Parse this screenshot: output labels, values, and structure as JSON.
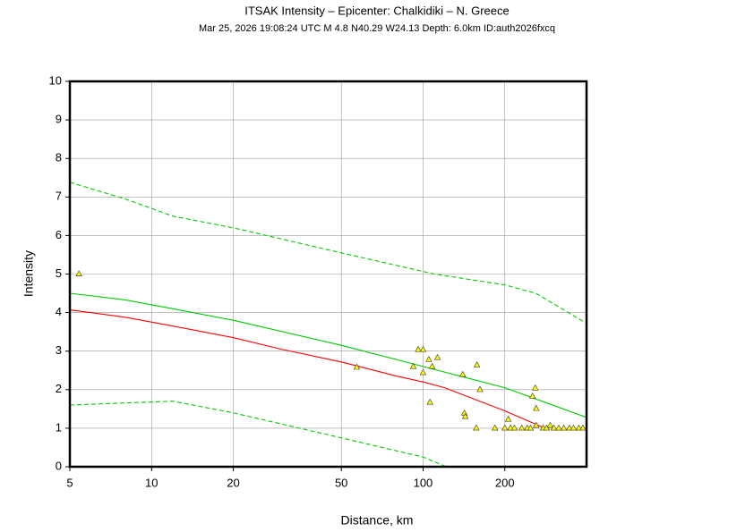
{
  "chart_data": {
    "type": "line",
    "title": "ITSAK Intensity –  Epicenter: Chalkidiki – N. Greece",
    "subtitle": "Mar 25, 2026 19:08:24 UTC   M 4.8   N40.29 W24.13   Depth: 6.0km   ID:auth2026fxcq",
    "x_label": "Distance, km",
    "y_label": "Intensity",
    "x_scale": "log",
    "xlim": [
      5,
      400
    ],
    "ylim": [
      0,
      10
    ],
    "xticks": [
      5,
      10,
      20,
      50,
      100,
      200
    ],
    "yticks": [
      0,
      1,
      2,
      3,
      4,
      5,
      6,
      7,
      8,
      9,
      10
    ],
    "grid": true,
    "series": [
      {
        "type": "line",
        "dashed": true,
        "color": "#00cc00",
        "x": [
          5,
          8,
          12,
          20,
          50,
          110,
          200,
          260,
          400
        ],
        "values": [
          7.38,
          6.95,
          6.5,
          6.2,
          5.55,
          5.0,
          4.72,
          4.5,
          3.72
        ]
      },
      {
        "type": "line",
        "dashed": false,
        "color": "#00cc00",
        "x": [
          5,
          8,
          12,
          20,
          50,
          100,
          200,
          400
        ],
        "values": [
          4.5,
          4.33,
          4.1,
          3.8,
          3.15,
          2.6,
          2.05,
          1.28
        ]
      },
      {
        "type": "line",
        "dashed": false,
        "color": "#ff0000",
        "x": [
          5,
          8,
          12,
          20,
          30,
          50,
          80,
          100,
          120,
          200,
          281
        ],
        "values": [
          4.07,
          3.88,
          3.65,
          3.35,
          3.05,
          2.72,
          2.35,
          2.2,
          2.05,
          1.45,
          1.0
        ]
      },
      {
        "type": "line",
        "dashed": true,
        "color": "#00cc00",
        "x": [
          5,
          12,
          20,
          50,
          100,
          122
        ],
        "values": [
          1.6,
          1.7,
          1.4,
          0.75,
          0.25,
          0
        ]
      },
      {
        "type": "scatter",
        "color": "#ffff00",
        "x": [
          5.4,
          57,
          92,
          96,
          100,
          100,
          105,
          108,
          106,
          113,
          140,
          142,
          143,
          158,
          162,
          157,
          184,
          200,
          206,
          210,
          217,
          231,
          242,
          249,
          253,
          259,
          261,
          261,
          277,
          285,
          294,
          303,
          316,
          330,
          346,
          358,
          375,
          388
        ],
        "values": [
          5.0,
          2.58,
          2.6,
          3.04,
          3.04,
          2.44,
          2.78,
          2.6,
          1.67,
          2.83,
          2.39,
          1.39,
          1.3,
          2.64,
          2.0,
          1.0,
          1.0,
          1.0,
          1.23,
          1.0,
          1.0,
          1.0,
          1.0,
          1.0,
          1.83,
          2.04,
          1.51,
          1.07,
          1.0,
          1.0,
          1.07,
          1.0,
          1.0,
          1.0,
          1.0,
          1.0,
          1.0,
          1.0
        ]
      }
    ]
  }
}
